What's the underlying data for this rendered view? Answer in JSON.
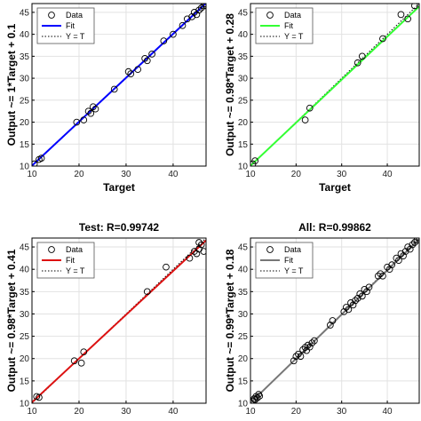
{
  "chart_data": [
    {
      "type": "scatter",
      "title": "",
      "xlabel": "Target",
      "ylabel": "Output ~= 1*Target + 0.1",
      "xlim": [
        10,
        47
      ],
      "ylim": [
        10,
        47
      ],
      "xticks": [
        "10",
        "20",
        "30",
        "40"
      ],
      "yticks": [
        "10",
        "15",
        "20",
        "25",
        "30",
        "35",
        "40",
        "45"
      ],
      "fit_color": "#0000ff",
      "fit": {
        "slope": 1,
        "intercept": 0.1
      },
      "legend": [
        "Data",
        "Fit",
        "Y = T"
      ],
      "legend_position": "top-left",
      "series": [
        {
          "name": "Data",
          "x": [
            10.5,
            11.5,
            12,
            19.5,
            21,
            22,
            22.5,
            23,
            23.5,
            27.5,
            30.5,
            31,
            32.5,
            34,
            34.5,
            35.5,
            38,
            40,
            42,
            43,
            44,
            44.5,
            45,
            45.5,
            46,
            46.5,
            46.8,
            47
          ],
          "y": [
            10.5,
            11.5,
            11.8,
            20,
            20.5,
            22.5,
            22,
            23.5,
            23,
            27.5,
            31.5,
            31,
            32,
            34.5,
            34,
            35.5,
            38.5,
            40,
            42,
            43.5,
            44,
            45,
            44.5,
            45.5,
            46,
            46.5,
            47,
            46.5
          ]
        }
      ]
    },
    {
      "type": "scatter",
      "title": "",
      "xlabel": "Target",
      "ylabel": "Output ~= 0.98*Target + 0.28",
      "xlim": [
        10,
        47
      ],
      "ylim": [
        10,
        47
      ],
      "xticks": [
        "10",
        "20",
        "30",
        "40"
      ],
      "yticks": [
        "10",
        "15",
        "20",
        "25",
        "30",
        "35",
        "40",
        "45"
      ],
      "fit_color": "#33ff33",
      "fit": {
        "slope": 0.98,
        "intercept": 0.28
      },
      "legend": [
        "Data",
        "Fit",
        "Y = T"
      ],
      "legend_position": "top-left",
      "series": [
        {
          "name": "Data",
          "x": [
            10.5,
            11,
            22,
            23,
            33.5,
            34.5,
            39,
            43,
            44.5,
            46
          ],
          "y": [
            10.5,
            11.2,
            20.5,
            23.2,
            33.5,
            35,
            39,
            44.5,
            43.5,
            46.5
          ]
        }
      ]
    },
    {
      "type": "scatter",
      "title": "Test: R=0.99742",
      "xlabel": "",
      "ylabel": "Output ~= 0.98*Target + 0.41",
      "xlim": [
        10,
        47
      ],
      "ylim": [
        10,
        47
      ],
      "xticks": [
        "10",
        "20",
        "30",
        "40"
      ],
      "yticks": [
        "10",
        "15",
        "20",
        "25",
        "30",
        "35",
        "40",
        "45"
      ],
      "fit_color": "#dd1111",
      "fit": {
        "slope": 0.98,
        "intercept": 0.41
      },
      "legend": [
        "Data",
        "Fit",
        "Y = T"
      ],
      "legend_position": "top-left",
      "series": [
        {
          "name": "Data",
          "x": [
            11,
            11.5,
            19,
            20.5,
            21,
            34.5,
            38.5,
            43.5,
            44.5,
            45,
            45.5,
            45.5,
            46,
            46.5
          ],
          "y": [
            11.5,
            11.3,
            19.5,
            19,
            21.5,
            35,
            40.5,
            42.5,
            44,
            43.5,
            44.5,
            46,
            45.5,
            44
          ]
        }
      ]
    },
    {
      "type": "scatter",
      "title": "All: R=0.99862",
      "xlabel": "",
      "ylabel": "Output ~= 0.99*Target + 0.18",
      "xlim": [
        10,
        47
      ],
      "ylim": [
        10,
        47
      ],
      "xticks": [
        "10",
        "20",
        "30",
        "40"
      ],
      "yticks": [
        "10",
        "15",
        "20",
        "25",
        "30",
        "35",
        "40",
        "45"
      ],
      "fit_color": "#777777",
      "fit": {
        "slope": 0.99,
        "intercept": 0.18
      },
      "legend": [
        "Data",
        "Fit",
        "Y = T"
      ],
      "legend_position": "top-left",
      "series": [
        {
          "name": "Data",
          "x": [
            10.5,
            10.8,
            11,
            11.2,
            11.5,
            11.8,
            12,
            19.5,
            20,
            20.5,
            21,
            21.5,
            22,
            22.3,
            22.6,
            23,
            23.5,
            24,
            27.5,
            28,
            30.5,
            31,
            31.5,
            32,
            32.5,
            33,
            33.5,
            34,
            34.5,
            35,
            35.5,
            36,
            38,
            38.5,
            39,
            40,
            40.5,
            41,
            42,
            42.5,
            43,
            43.5,
            44,
            44.5,
            45,
            45.5,
            46,
            46.5,
            47
          ],
          "y": [
            10.5,
            11,
            10.8,
            11.5,
            11.2,
            12,
            11.6,
            19.5,
            20.5,
            21,
            20.5,
            22,
            22.5,
            21.8,
            23,
            22.6,
            23.5,
            24,
            27.5,
            28.5,
            30.5,
            31.5,
            31,
            32.5,
            32,
            33,
            33.5,
            34.5,
            34,
            35.5,
            35,
            36,
            38.5,
            39,
            38.5,
            40.5,
            40,
            41,
            42.5,
            42,
            43.5,
            43,
            44,
            45,
            44.5,
            45.5,
            46,
            46.5,
            47
          ]
        }
      ]
    }
  ]
}
